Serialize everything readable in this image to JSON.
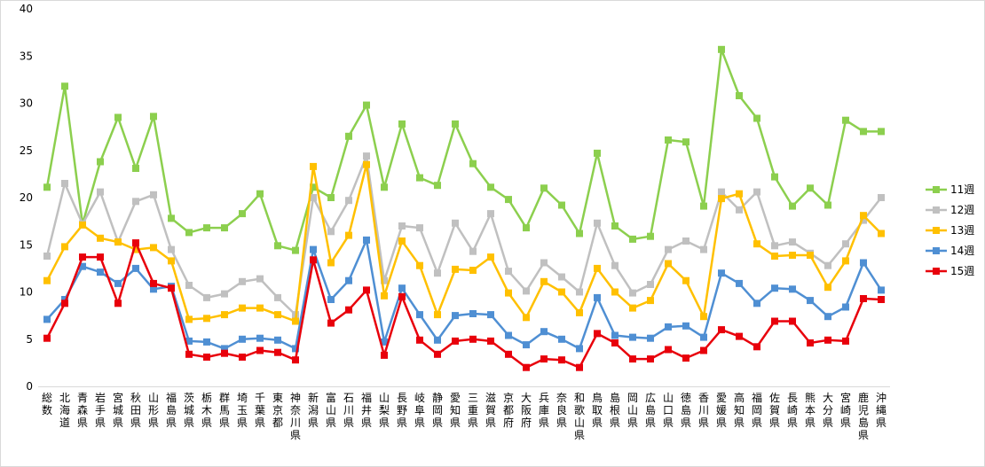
{
  "chart_data": {
    "type": "line",
    "title": "",
    "xlabel": "",
    "ylabel": "",
    "ylim": [
      0,
      40
    ],
    "yticks": [
      0,
      5,
      10,
      15,
      20,
      25,
      30,
      35,
      40
    ],
    "grid": false,
    "legend_position": "right",
    "categories": [
      "総数",
      "北海道",
      "青森県",
      "岩手県",
      "宮城県",
      "秋田県",
      "山形県",
      "福島県",
      "茨城県",
      "栃木県",
      "群馬県",
      "埼玉県",
      "千葉県",
      "東京都",
      "神奈川県",
      "新潟県",
      "富山県",
      "石川県",
      "福井県",
      "山梨県",
      "長野県",
      "岐阜県",
      "静岡県",
      "愛知県",
      "三重県",
      "滋賀県",
      "京都府",
      "大阪府",
      "兵庫県",
      "奈良県",
      "和歌山県",
      "鳥取県",
      "島根県",
      "岡山県",
      "広島県",
      "山口県",
      "徳島県",
      "香川県",
      "愛媛県",
      "高知県",
      "福岡県",
      "佐賀県",
      "長崎県",
      "熊本県",
      "大分県",
      "宮崎県",
      "鹿児島県",
      "沖縄県"
    ],
    "series": [
      {
        "name": "11週",
        "color": "#8ccf4e",
        "values": [
          21.1,
          31.8,
          17.2,
          23.8,
          28.5,
          23.1,
          28.6,
          17.8,
          16.3,
          16.8,
          16.8,
          18.3,
          20.4,
          14.9,
          14.4,
          21.1,
          20.0,
          26.5,
          29.8,
          21.1,
          27.8,
          22.1,
          21.3,
          27.8,
          23.6,
          21.1,
          19.8,
          16.8,
          21.0,
          19.2,
          16.2,
          24.7,
          17.0,
          15.6,
          15.9,
          26.1,
          25.9,
          19.1,
          35.7,
          30.8,
          28.4,
          22.2,
          19.1,
          21.0,
          19.2,
          28.2,
          27.0,
          27.0
        ]
      },
      {
        "name": "12週",
        "color": "#c0c0c0",
        "values": [
          13.8,
          21.5,
          17.2,
          20.6,
          15.3,
          19.6,
          20.3,
          14.5,
          10.7,
          9.4,
          9.8,
          11.1,
          11.4,
          9.4,
          7.6,
          20.0,
          16.4,
          19.7,
          24.4,
          11.2,
          17.0,
          16.8,
          12.0,
          17.3,
          14.3,
          18.3,
          12.2,
          10.1,
          13.1,
          11.6,
          10.0,
          17.3,
          12.8,
          9.9,
          10.8,
          14.5,
          15.4,
          14.5,
          20.6,
          18.7,
          20.6,
          14.9,
          15.3,
          14.1,
          12.8,
          15.1,
          17.6,
          20.0
        ]
      },
      {
        "name": "13週",
        "color": "#ffc000",
        "values": [
          11.2,
          14.8,
          17.1,
          15.7,
          15.3,
          14.5,
          14.7,
          13.3,
          7.1,
          7.2,
          7.6,
          8.3,
          8.3,
          7.6,
          6.9,
          23.3,
          13.1,
          16.0,
          23.5,
          9.6,
          15.4,
          12.8,
          7.6,
          12.4,
          12.3,
          13.7,
          9.9,
          7.3,
          11.1,
          10.0,
          7.8,
          12.5,
          10.0,
          8.3,
          9.1,
          13.0,
          11.2,
          7.4,
          19.9,
          20.4,
          15.1,
          13.8,
          13.9,
          13.9,
          10.5,
          13.3,
          18.1,
          16.2
        ]
      },
      {
        "name": "14週",
        "color": "#4f8fd3",
        "values": [
          7.1,
          9.2,
          12.7,
          12.1,
          10.9,
          12.5,
          10.3,
          10.6,
          4.8,
          4.7,
          4.0,
          5.0,
          5.1,
          4.9,
          4.0,
          14.5,
          9.2,
          11.2,
          15.5,
          4.7,
          10.4,
          7.6,
          4.9,
          7.5,
          7.7,
          7.6,
          5.4,
          4.4,
          5.8,
          5.0,
          4.0,
          9.4,
          5.4,
          5.2,
          5.1,
          6.3,
          6.4,
          5.2,
          12.0,
          10.9,
          8.8,
          10.4,
          10.3,
          9.1,
          7.4,
          8.4,
          13.1,
          10.2
        ]
      },
      {
        "name": "15週",
        "color": "#e8000b",
        "values": [
          5.1,
          8.8,
          13.7,
          13.7,
          8.8,
          15.2,
          10.9,
          10.4,
          3.4,
          3.1,
          3.5,
          3.1,
          3.8,
          3.6,
          2.8,
          13.4,
          6.7,
          8.1,
          10.2,
          3.3,
          9.5,
          4.9,
          3.4,
          4.8,
          5.0,
          4.8,
          3.4,
          2.0,
          2.9,
          2.8,
          2.0,
          5.6,
          4.6,
          2.9,
          2.9,
          3.9,
          3.0,
          3.8,
          6.0,
          5.3,
          4.2,
          6.9,
          6.9,
          4.6,
          4.9,
          4.8,
          9.3,
          9.2
        ]
      }
    ]
  }
}
